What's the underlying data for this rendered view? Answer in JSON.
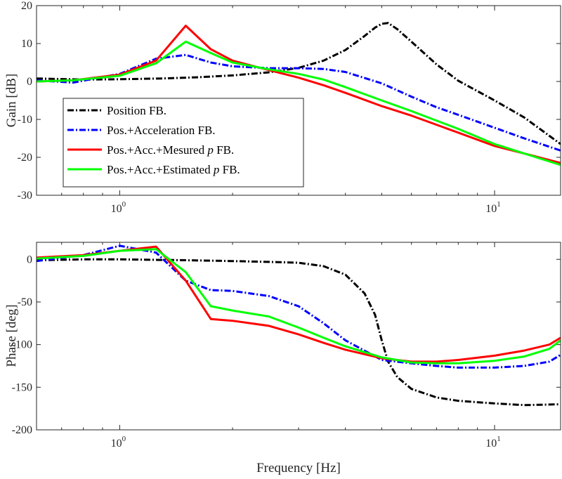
{
  "chart_data": [
    {
      "type": "line",
      "name": "gain",
      "xscale": "log",
      "xlim": [
        0.6,
        15
      ],
      "ylim": [
        -30,
        20
      ],
      "yticks": [
        20,
        10,
        0,
        -10,
        -20,
        -30
      ],
      "ytick_labels": [
        "20",
        "10",
        "0",
        "-10",
        "-20",
        "-30"
      ],
      "xticks": [
        {
          "value": 1,
          "base": "10",
          "exp": "0"
        },
        {
          "value": 10,
          "base": "10",
          "exp": "1"
        }
      ],
      "xlabel": "",
      "ylabel": "Gain [dB]",
      "legend": {
        "position": "lower-left",
        "entries": [
          {
            "prefix": "Position FB.",
            "italic": "",
            "suffix": ""
          },
          {
            "prefix": "Pos.+Acceleration FB.",
            "italic": "",
            "suffix": ""
          },
          {
            "prefix": "Pos.+Acc.+Mesured ",
            "italic": "p",
            "suffix": " FB."
          },
          {
            "prefix": "Pos.+Acc.+Estimated ",
            "italic": "p",
            "suffix": " FB."
          }
        ]
      },
      "series": [
        {
          "name": "Position FB.",
          "color": "#000000",
          "dash": "dashdot",
          "x": [
            0.6,
            0.8,
            1.0,
            1.3,
            1.6,
            2.0,
            2.5,
            3.0,
            3.5,
            4.0,
            4.5,
            4.8,
            5.0,
            5.2,
            5.5,
            6.0,
            7.0,
            8.0,
            10.0,
            12.0,
            15.0
          ],
          "y": [
            0.8,
            0.5,
            0.6,
            0.8,
            1.1,
            1.6,
            2.4,
            3.6,
            5.5,
            8.3,
            12.0,
            14.2,
            15.2,
            15.4,
            13.8,
            10.5,
            4.5,
            0.2,
            -5.0,
            -9.5,
            -16.5
          ]
        },
        {
          "name": "Pos.+Acceleration FB.",
          "color": "#0000ff",
          "dash": "dashdot",
          "x": [
            0.6,
            0.75,
            1.0,
            1.25,
            1.5,
            1.75,
            2.0,
            2.5,
            3.0,
            3.5,
            4.0,
            5.0,
            6.0,
            7.0,
            8.0,
            10.0,
            12.0,
            15.0
          ],
          "y": [
            0.3,
            -0.3,
            2.0,
            6.0,
            7.0,
            5.0,
            4.0,
            3.5,
            3.5,
            3.3,
            2.5,
            -0.5,
            -4.0,
            -6.8,
            -8.8,
            -12.2,
            -15.0,
            -18.2
          ]
        },
        {
          "name": "Pos.+Acc.+Mesured p FB.",
          "color": "#ff0000",
          "dash": "solid",
          "x": [
            0.6,
            0.75,
            1.0,
            1.25,
            1.5,
            1.75,
            2.0,
            2.5,
            3.0,
            3.5,
            4.0,
            5.0,
            6.0,
            8.0,
            10.0,
            12.0,
            15.0
          ],
          "y": [
            0.0,
            0.3,
            1.8,
            5.5,
            14.7,
            8.5,
            5.5,
            3.0,
            1.0,
            -1.0,
            -3.0,
            -6.5,
            -9.0,
            -13.5,
            -17.0,
            -19.0,
            -21.5
          ]
        },
        {
          "name": "Pos.+Acc.+Estimated p FB.",
          "color": "#00ff00",
          "dash": "solid",
          "x": [
            0.6,
            0.75,
            1.0,
            1.25,
            1.5,
            1.75,
            2.0,
            2.5,
            3.0,
            3.5,
            4.0,
            5.0,
            6.0,
            8.0,
            10.0,
            12.0,
            15.0
          ],
          "y": [
            0.0,
            0.3,
            1.5,
            4.8,
            10.5,
            7.5,
            5.0,
            3.2,
            2.0,
            0.5,
            -1.5,
            -5.0,
            -7.8,
            -12.5,
            -16.5,
            -19.0,
            -22.0
          ]
        }
      ]
    },
    {
      "type": "line",
      "name": "phase",
      "xscale": "log",
      "xlim": [
        0.6,
        15
      ],
      "ylim": [
        -200,
        20
      ],
      "yticks": [
        0,
        -50,
        -100,
        -150,
        -200
      ],
      "ytick_labels": [
        "0",
        "-50",
        "-100",
        "-150",
        "-200"
      ],
      "xticks": [
        {
          "value": 1,
          "base": "10",
          "exp": "0"
        },
        {
          "value": 10,
          "base": "10",
          "exp": "1"
        }
      ],
      "xlabel": "Frequency [Hz]",
      "ylabel": "Phase [deg]",
      "series": [
        {
          "name": "Position FB.",
          "color": "#000000",
          "dash": "dashdot",
          "x": [
            0.6,
            0.8,
            1.0,
            1.5,
            2.0,
            2.5,
            3.0,
            3.5,
            4.0,
            4.5,
            4.8,
            5.0,
            5.2,
            5.5,
            6.0,
            7.0,
            8.0,
            10.0,
            12.0,
            15.0
          ],
          "y": [
            -1,
            0,
            0,
            -1,
            -2,
            -3,
            -4,
            -8,
            -18,
            -40,
            -65,
            -95,
            -120,
            -138,
            -152,
            -162,
            -166,
            -169,
            -171,
            -170
          ]
        },
        {
          "name": "Pos.+Acceleration FB.",
          "color": "#0000ff",
          "dash": "dashdot",
          "x": [
            0.6,
            0.8,
            1.0,
            1.25,
            1.5,
            1.75,
            2.0,
            2.5,
            3.0,
            3.5,
            4.0,
            5.0,
            6.0,
            7.0,
            8.0,
            10.0,
            12.0,
            14.0,
            15.0
          ],
          "y": [
            -2,
            5,
            16,
            8,
            -25,
            -36,
            -37,
            -43,
            -55,
            -75,
            -95,
            -118,
            -122,
            -125,
            -127,
            -127,
            -125,
            -120,
            -112
          ]
        },
        {
          "name": "Pos.+Acc.+Mesured p FB.",
          "color": "#ff0000",
          "dash": "solid",
          "x": [
            0.6,
            0.8,
            1.0,
            1.25,
            1.5,
            1.75,
            2.0,
            2.5,
            3.0,
            3.5,
            4.0,
            5.0,
            6.0,
            7.0,
            8.0,
            10.0,
            12.0,
            14.0,
            15.0
          ],
          "y": [
            2,
            5,
            10,
            15,
            -25,
            -70,
            -72,
            -78,
            -88,
            -98,
            -106,
            -116,
            -120,
            -120,
            -118,
            -113,
            -107,
            -100,
            -92
          ]
        },
        {
          "name": "Pos.+Acc.+Estimated p FB.",
          "color": "#00ff00",
          "dash": "solid",
          "x": [
            0.6,
            0.8,
            1.0,
            1.25,
            1.5,
            1.75,
            2.0,
            2.5,
            3.0,
            3.5,
            4.0,
            5.0,
            6.0,
            7.0,
            8.0,
            10.0,
            12.0,
            14.0,
            15.0
          ],
          "y": [
            1,
            4,
            10,
            12,
            -15,
            -55,
            -60,
            -67,
            -80,
            -92,
            -102,
            -115,
            -121,
            -122,
            -122,
            -119,
            -114,
            -105,
            -95
          ]
        }
      ]
    }
  ]
}
